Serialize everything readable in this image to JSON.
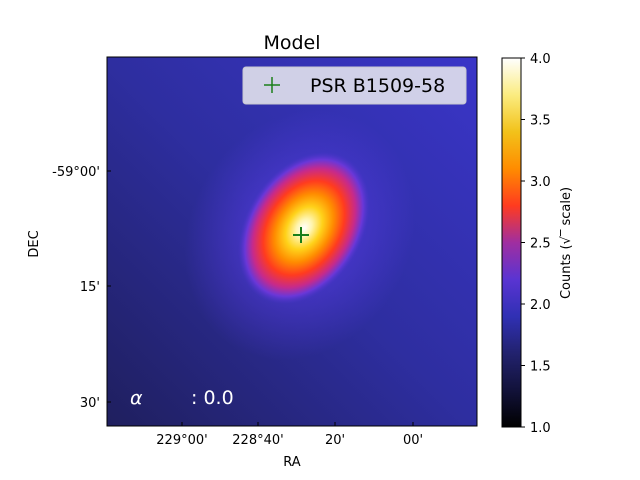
{
  "chart_data": {
    "type": "heatmap",
    "title": "Model",
    "xlabel": "RA",
    "ylabel": "DEC",
    "x_tick_labels": [
      "229°00'",
      "228°40'",
      "20'",
      "00'"
    ],
    "y_tick_labels": [
      "-59°00'",
      "15'",
      "30'"
    ],
    "legend": {
      "label": "PSR B1509-58",
      "marker": "+",
      "color": "#1a7f1a",
      "placement": "top-right"
    },
    "annotation": {
      "symbol": "α",
      "text": ": 0.0"
    },
    "colorbar": {
      "label": "Counts (√‾ scale)",
      "range": [
        1.0,
        4.0
      ],
      "ticks": [
        "1.0",
        "1.5",
        "2.0",
        "2.5",
        "3.0",
        "3.5",
        "4.0"
      ],
      "colormap": "cmr.freeze / gnuplot2-like"
    },
    "source": {
      "ra": "228°29'",
      "dec": "-59°08'",
      "peak_value": 4.0,
      "background_value": 1.55
    }
  }
}
